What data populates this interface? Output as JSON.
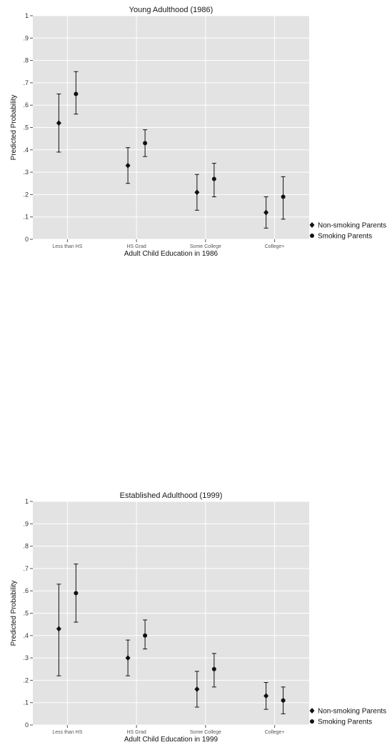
{
  "chart_data": [
    {
      "type": "scatter",
      "title": "Young Adulthood (1986)",
      "xlabel": "Adult Child Education in 1986",
      "ylabel": "Predicted Probability",
      "categories": [
        "Less than HS",
        "HS Grad",
        "Some College",
        "College+"
      ],
      "ylim": [
        0,
        1
      ],
      "yticks": [
        "0",
        ".1",
        ".2",
        ".3",
        ".4",
        ".5",
        ".6",
        ".7",
        ".8",
        ".9",
        "1"
      ],
      "grid": true,
      "legend_position": "right",
      "series": [
        {
          "name": "Non-smoking Parents",
          "marker": "diamond",
          "values": [
            0.52,
            0.33,
            0.21,
            0.12
          ],
          "lower": [
            0.39,
            0.25,
            0.13,
            0.05
          ],
          "upper": [
            0.65,
            0.41,
            0.29,
            0.19
          ]
        },
        {
          "name": "Smoking Parents",
          "marker": "circle",
          "values": [
            0.65,
            0.43,
            0.27,
            0.19
          ],
          "lower": [
            0.56,
            0.37,
            0.19,
            0.09
          ],
          "upper": [
            0.75,
            0.49,
            0.34,
            0.28
          ]
        }
      ]
    },
    {
      "type": "scatter",
      "title": "Established Adulthood (1999)",
      "xlabel": "Adult Child Education in 1999",
      "ylabel": "Predicted Probability",
      "categories": [
        "Less than HS",
        "HS Grad",
        "Some College",
        "College+"
      ],
      "ylim": [
        0,
        1
      ],
      "yticks": [
        "0",
        ".1",
        ".2",
        ".3",
        ".4",
        ".5",
        ".6",
        ".7",
        ".8",
        ".9",
        "1"
      ],
      "grid": true,
      "legend_position": "right",
      "series": [
        {
          "name": "Non-smoking Parents",
          "marker": "diamond",
          "values": [
            0.43,
            0.3,
            0.16,
            0.13
          ],
          "lower": [
            0.22,
            0.22,
            0.08,
            0.07
          ],
          "upper": [
            0.63,
            0.38,
            0.24,
            0.19
          ]
        },
        {
          "name": "Smoking Parents",
          "marker": "circle",
          "values": [
            0.59,
            0.4,
            0.25,
            0.11
          ],
          "lower": [
            0.46,
            0.34,
            0.17,
            0.05
          ],
          "upper": [
            0.72,
            0.47,
            0.32,
            0.17
          ]
        }
      ]
    }
  ],
  "colors": {
    "panel_background": "#e3e3e3",
    "grid": "#ffffff",
    "marker": "#111111"
  }
}
